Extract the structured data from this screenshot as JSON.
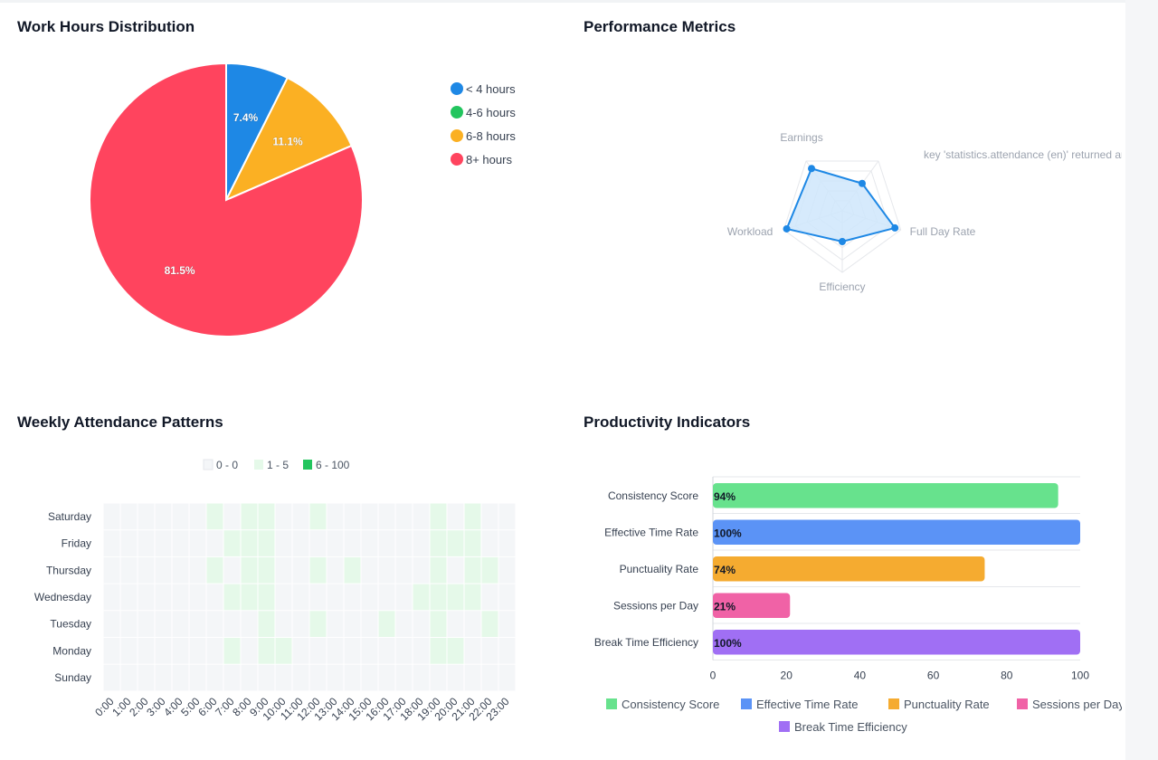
{
  "charts": {
    "work_hours": {
      "title": "Work Hours Distribution"
    },
    "performance": {
      "title": "Performance Metrics"
    },
    "attendance": {
      "title": "Weekly Attendance Patterns"
    },
    "productivity": {
      "title": "Productivity Indicators"
    }
  },
  "chart_data": [
    {
      "id": "work_hours",
      "type": "pie",
      "title": "Work Hours Distribution",
      "legend_position": "right",
      "slices": [
        {
          "label": "< 4 hours",
          "value": 7.4,
          "display": "7.4%",
          "color": "#1e88e5"
        },
        {
          "label": "4-6 hours",
          "value": 0,
          "display": "",
          "color": "#22c55e"
        },
        {
          "label": "6-8 hours",
          "value": 11.1,
          "display": "11.1%",
          "color": "#fbb023"
        },
        {
          "label": "8+ hours",
          "value": 81.5,
          "display": "81.5%",
          "color": "#ff445e"
        }
      ]
    },
    {
      "id": "performance",
      "type": "radar",
      "title": "Performance Metrics",
      "axes": [
        "key 'statistics.attendance (en)' returned an ol",
        "Full Day Rate",
        "Efficiency",
        "Workload",
        "Earnings"
      ],
      "range": [
        0,
        100
      ],
      "values": [
        55,
        90,
        50,
        95,
        85
      ],
      "color": "#1e88e5",
      "fill": "#cfe6fb"
    },
    {
      "id": "attendance",
      "type": "heatmap",
      "title": "Weekly Attendance Patterns",
      "legend": [
        {
          "label": "0 - 0",
          "color": "#f4f6f8"
        },
        {
          "label": "1 - 5",
          "color": "#e5f9e9"
        },
        {
          "label": "6 - 100",
          "color": "#22c55e"
        }
      ],
      "x": [
        "0:00",
        "1:00",
        "2:00",
        "3:00",
        "4:00",
        "5:00",
        "6:00",
        "7:00",
        "8:00",
        "9:00",
        "10:00",
        "11:00",
        "12:00",
        "13:00",
        "14:00",
        "15:00",
        "16:00",
        "17:00",
        "18:00",
        "19:00",
        "20:00",
        "21:00",
        "22:00",
        "23:00"
      ],
      "y": [
        "Saturday",
        "Friday",
        "Thursday",
        "Wednesday",
        "Tuesday",
        "Monday",
        "Sunday"
      ],
      "values": [
        [
          0,
          0,
          0,
          0,
          0,
          0,
          1,
          0,
          1,
          1,
          0,
          0,
          1,
          0,
          0,
          0,
          0,
          0,
          0,
          1,
          0,
          1,
          0,
          0
        ],
        [
          0,
          0,
          0,
          0,
          0,
          0,
          0,
          1,
          1,
          1,
          0,
          0,
          0,
          0,
          0,
          0,
          0,
          0,
          0,
          1,
          1,
          1,
          0,
          0
        ],
        [
          0,
          0,
          0,
          0,
          0,
          0,
          1,
          0,
          1,
          1,
          0,
          0,
          1,
          0,
          1,
          0,
          0,
          0,
          0,
          1,
          0,
          1,
          1,
          0
        ],
        [
          0,
          0,
          0,
          0,
          0,
          0,
          0,
          1,
          1,
          1,
          0,
          0,
          0,
          0,
          0,
          0,
          0,
          0,
          1,
          1,
          1,
          1,
          0,
          0
        ],
        [
          0,
          0,
          0,
          0,
          0,
          0,
          0,
          0,
          0,
          1,
          0,
          0,
          1,
          0,
          0,
          0,
          1,
          0,
          0,
          1,
          0,
          0,
          1,
          0
        ],
        [
          0,
          0,
          0,
          0,
          0,
          0,
          0,
          1,
          0,
          1,
          1,
          0,
          0,
          0,
          0,
          0,
          0,
          0,
          0,
          1,
          1,
          0,
          0,
          0
        ],
        [
          0,
          0,
          0,
          0,
          0,
          0,
          0,
          0,
          0,
          0,
          0,
          0,
          0,
          0,
          0,
          0,
          0,
          0,
          0,
          0,
          0,
          0,
          0,
          0
        ]
      ]
    },
    {
      "id": "productivity",
      "type": "bar",
      "orientation": "horizontal",
      "title": "Productivity Indicators",
      "categories": [
        "Consistency Score",
        "Effective Time Rate",
        "Punctuality Rate",
        "Sessions per Day",
        "Break Time Efficiency"
      ],
      "values": [
        94,
        100,
        74,
        21,
        100
      ],
      "labels": [
        "94%",
        "100%",
        "74%",
        "21%",
        "100%"
      ],
      "colors": [
        "#67e28d",
        "#5b93f6",
        "#f5ab30",
        "#f062a6",
        "#a06ff4"
      ],
      "xlim": [
        0,
        100
      ],
      "xticks": [
        0,
        20,
        40,
        60,
        80,
        100
      ],
      "grid": true,
      "legend_position": "bottom"
    }
  ]
}
